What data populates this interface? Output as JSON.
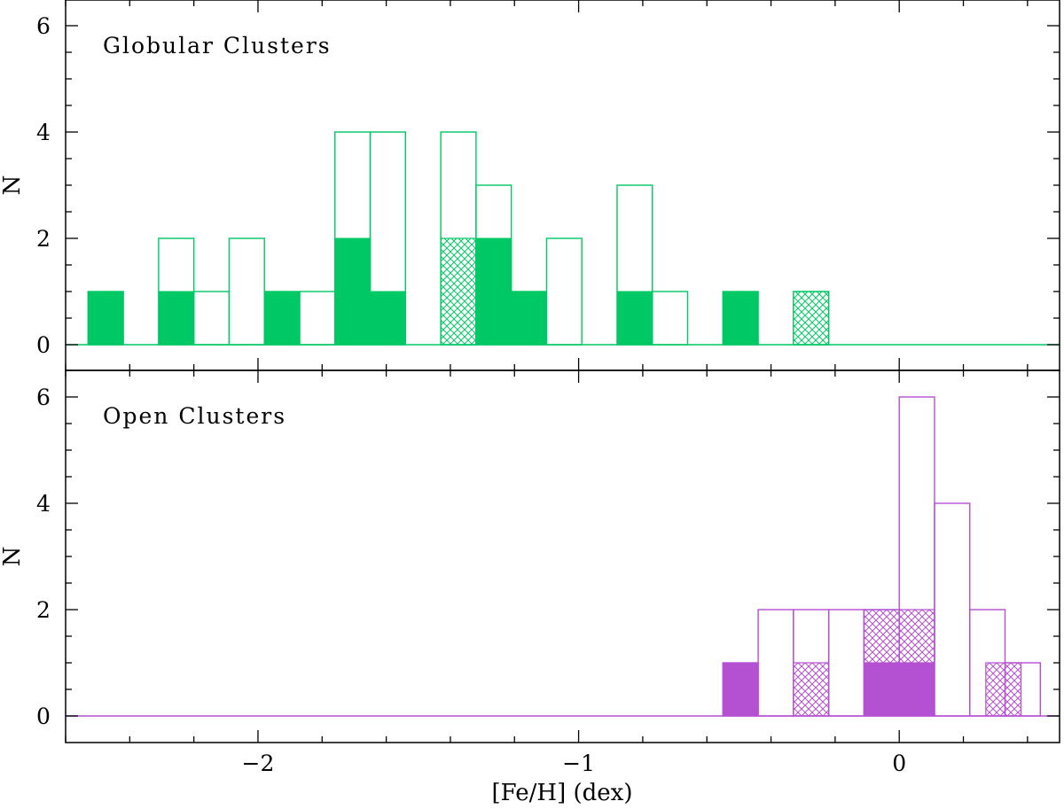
{
  "chart_data": [
    {
      "type": "bar",
      "title": "Globular Clusters",
      "xlabel": "",
      "ylabel": "N",
      "xlim": [
        -2.6,
        0.5
      ],
      "ylim": [
        -0.5,
        6.5
      ],
      "yticks": [
        0,
        2,
        4,
        6
      ],
      "yticks_labels": [
        "0",
        "2",
        "4",
        "6"
      ],
      "bin_width": 0.11,
      "color": "#00c864",
      "series": [
        {
          "name": "",
          "style": "outline",
          "bins": [
            {
              "x0": -2.53,
              "x1": -2.42,
              "value": 1
            },
            {
              "x0": -2.42,
              "x1": -2.31,
              "value": 0
            },
            {
              "x0": -2.31,
              "x1": -2.2,
              "value": 2
            },
            {
              "x0": -2.2,
              "x1": -2.09,
              "value": 1
            },
            {
              "x0": -2.09,
              "x1": -1.98,
              "value": 2
            },
            {
              "x0": -1.98,
              "x1": -1.87,
              "value": 1
            },
            {
              "x0": -1.87,
              "x1": -1.76,
              "value": 1
            },
            {
              "x0": -1.76,
              "x1": -1.65,
              "value": 4
            },
            {
              "x0": -1.65,
              "x1": -1.54,
              "value": 4
            },
            {
              "x0": -1.54,
              "x1": -1.43,
              "value": 0
            },
            {
              "x0": -1.43,
              "x1": -1.32,
              "value": 4
            },
            {
              "x0": -1.32,
              "x1": -1.21,
              "value": 3
            },
            {
              "x0": -1.21,
              "x1": -1.1,
              "value": 1
            },
            {
              "x0": -1.1,
              "x1": -0.99,
              "value": 2
            },
            {
              "x0": -0.99,
              "x1": -0.88,
              "value": 0
            },
            {
              "x0": -0.88,
              "x1": -0.77,
              "value": 3
            },
            {
              "x0": -0.77,
              "x1": -0.66,
              "value": 1
            },
            {
              "x0": -0.66,
              "x1": -0.55,
              "value": 0
            },
            {
              "x0": -0.55,
              "x1": -0.44,
              "value": 1
            },
            {
              "x0": -0.44,
              "x1": -0.33,
              "value": 0
            },
            {
              "x0": -0.33,
              "x1": -0.22,
              "value": 1
            }
          ]
        },
        {
          "name": "",
          "style": "filled",
          "bins": [
            {
              "x0": -2.53,
              "x1": -2.42,
              "value": 1
            },
            {
              "x0": -2.31,
              "x1": -2.2,
              "value": 1
            },
            {
              "x0": -1.98,
              "x1": -1.87,
              "value": 1
            },
            {
              "x0": -1.76,
              "x1": -1.65,
              "value": 2
            },
            {
              "x0": -1.65,
              "x1": -1.54,
              "value": 1
            },
            {
              "x0": -1.32,
              "x1": -1.21,
              "value": 2
            },
            {
              "x0": -1.21,
              "x1": -1.1,
              "value": 1
            },
            {
              "x0": -0.88,
              "x1": -0.77,
              "value": 1
            },
            {
              "x0": -0.55,
              "x1": -0.44,
              "value": 1
            }
          ]
        },
        {
          "name": "",
          "style": "hatched",
          "bins": [
            {
              "x0": -1.43,
              "x1": -1.32,
              "value": 2
            },
            {
              "x0": -0.33,
              "x1": -0.22,
              "value": 1
            }
          ]
        }
      ]
    },
    {
      "type": "bar",
      "title": "Open Clusters",
      "xlabel": "[Fe/H] (dex)",
      "ylabel": "N",
      "xlim": [
        -2.6,
        0.5
      ],
      "ylim": [
        -0.5,
        6.5
      ],
      "yticks": [
        0,
        2,
        4,
        6
      ],
      "yticks_labels": [
        "0",
        "2",
        "4",
        "6"
      ],
      "xticks": [
        -2,
        -1,
        0
      ],
      "xticks_labels": [
        "−2",
        "−1",
        "0"
      ],
      "bin_width": 0.11,
      "color": "#b450d2",
      "series": [
        {
          "name": "",
          "style": "outline",
          "bins": [
            {
              "x0": -0.55,
              "x1": -0.44,
              "value": 1
            },
            {
              "x0": -0.44,
              "x1": -0.33,
              "value": 2
            },
            {
              "x0": -0.33,
              "x1": -0.22,
              "value": 2
            },
            {
              "x0": -0.22,
              "x1": -0.11,
              "value": 2
            },
            {
              "x0": -0.11,
              "x1": 0.0,
              "value": 2
            },
            {
              "x0": 0.0,
              "x1": 0.11,
              "value": 6
            },
            {
              "x0": 0.11,
              "x1": 0.22,
              "value": 4
            },
            {
              "x0": 0.22,
              "x1": 0.33,
              "value": 2
            },
            {
              "x0": 0.33,
              "x1": 0.44,
              "value": 1
            }
          ]
        },
        {
          "name": "",
          "style": "filled",
          "bins": [
            {
              "x0": -0.55,
              "x1": -0.44,
              "value": 1
            },
            {
              "x0": -0.11,
              "x1": 0.11,
              "value": 1
            }
          ]
        },
        {
          "name": "",
          "style": "hatched",
          "bins": [
            {
              "x0": -0.33,
              "x1": -0.22,
              "value": 1
            },
            {
              "x0": -0.11,
              "x1": 0.11,
              "value": 2,
              "from": 1
            },
            {
              "x0": 0.27,
              "x1": 0.38,
              "value": 1
            }
          ]
        }
      ]
    }
  ]
}
